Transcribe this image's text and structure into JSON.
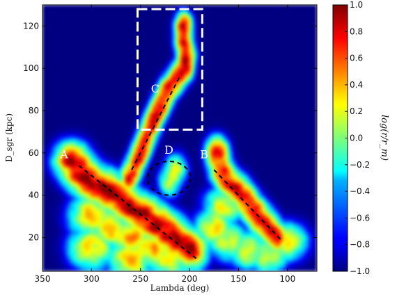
{
  "chart_data": {
    "type": "heatmap",
    "xlabel": "Lambda (deg)",
    "ylabel": "D_sgr (kpc)",
    "xlim": [
      350,
      70
    ],
    "ylim": [
      4,
      130
    ],
    "x_ticks": [
      350,
      300,
      250,
      200,
      150,
      100
    ],
    "y_ticks": [
      20,
      40,
      60,
      80,
      100,
      120
    ],
    "colorbar": {
      "label": "log(r/r_m)",
      "range": [
        -1.0,
        1.0
      ],
      "ticks": [
        1.0,
        0.8,
        0.6,
        0.4,
        0.2,
        0.0,
        -0.2,
        -0.4,
        -0.6,
        -0.8,
        -1.0
      ],
      "tick_labels": [
        "1.0",
        "0.8",
        "0.6",
        "0.4",
        "0.2",
        "0.0",
        "−0.2",
        "−0.4",
        "−0.6",
        "−0.8",
        "−1.0"
      ],
      "colormap": "jet"
    },
    "background_value": -1.0,
    "features": [
      {
        "name": "leading-arm-lower",
        "points": [
          [
            320,
            56
          ],
          [
            310,
            50
          ],
          [
            300,
            46
          ],
          [
            290,
            44
          ],
          [
            275,
            40
          ],
          [
            260,
            34
          ],
          [
            245,
            30
          ],
          [
            230,
            25
          ],
          [
            215,
            20
          ],
          [
            200,
            14
          ]
        ],
        "peak": 0.95,
        "width_deg": 14,
        "width_kpc": 7
      },
      {
        "name": "lower-broad-region",
        "points": [
          [
            300,
            30
          ],
          [
            280,
            25
          ],
          [
            260,
            20
          ],
          [
            240,
            15
          ],
          [
            220,
            12
          ],
          [
            300,
            15
          ],
          [
            260,
            10
          ]
        ],
        "peak": 0.45,
        "width_deg": 18,
        "width_kpc": 8
      },
      {
        "name": "arm-C",
        "points": [
          [
            262,
            48
          ],
          [
            252,
            58
          ],
          [
            245,
            66
          ],
          [
            238,
            74
          ],
          [
            230,
            82
          ],
          [
            222,
            90
          ],
          [
            212,
            96
          ],
          [
            205,
            100
          ],
          [
            203,
            106
          ],
          [
            206,
            113
          ],
          [
            206,
            120
          ]
        ],
        "peak": 0.9,
        "width_deg": 7,
        "width_kpc": 5
      },
      {
        "name": "cloud-D",
        "points": [
          [
            220,
            47
          ],
          [
            214,
            52
          ]
        ],
        "peak": 0.25,
        "width_deg": 9,
        "width_kpc": 6
      },
      {
        "name": "arm-B",
        "points": [
          [
            172,
            60
          ],
          [
            168,
            52
          ],
          [
            160,
            46
          ],
          [
            150,
            42
          ],
          [
            140,
            36
          ],
          [
            130,
            30
          ],
          [
            120,
            25
          ],
          [
            112,
            20
          ]
        ],
        "peak": 0.85,
        "width_deg": 9,
        "width_kpc": 6
      },
      {
        "name": "right-lower-region",
        "points": [
          [
            175,
            25
          ],
          [
            160,
            18
          ],
          [
            140,
            14
          ],
          [
            120,
            12
          ],
          [
            100,
            18
          ],
          [
            165,
            35
          ]
        ],
        "peak": 0.3,
        "width_deg": 16,
        "width_kpc": 7
      }
    ],
    "annotations": [
      {
        "label": "A",
        "x": 328,
        "y": 59
      },
      {
        "label": "B",
        "x": 185,
        "y": 59
      },
      {
        "label": "C",
        "x": 235,
        "y": 90
      },
      {
        "label": "D",
        "x": 221,
        "y": 61
      }
    ],
    "dashed_lines": [
      {
        "from": [
          313,
          54
        ],
        "to": [
          193,
          10
        ]
      },
      {
        "from": [
          259,
          52
        ],
        "to": [
          209,
          97
        ]
      },
      {
        "from": [
          175,
          52
        ],
        "to": [
          107,
          19
        ]
      }
    ],
    "dashed_box": {
      "x_range": [
        253,
        187
      ],
      "y_range": [
        71,
        128
      ]
    },
    "dashed_circle": {
      "center": [
        221,
        48
      ],
      "radius_deg": 22,
      "radius_kpc": 8
    }
  }
}
